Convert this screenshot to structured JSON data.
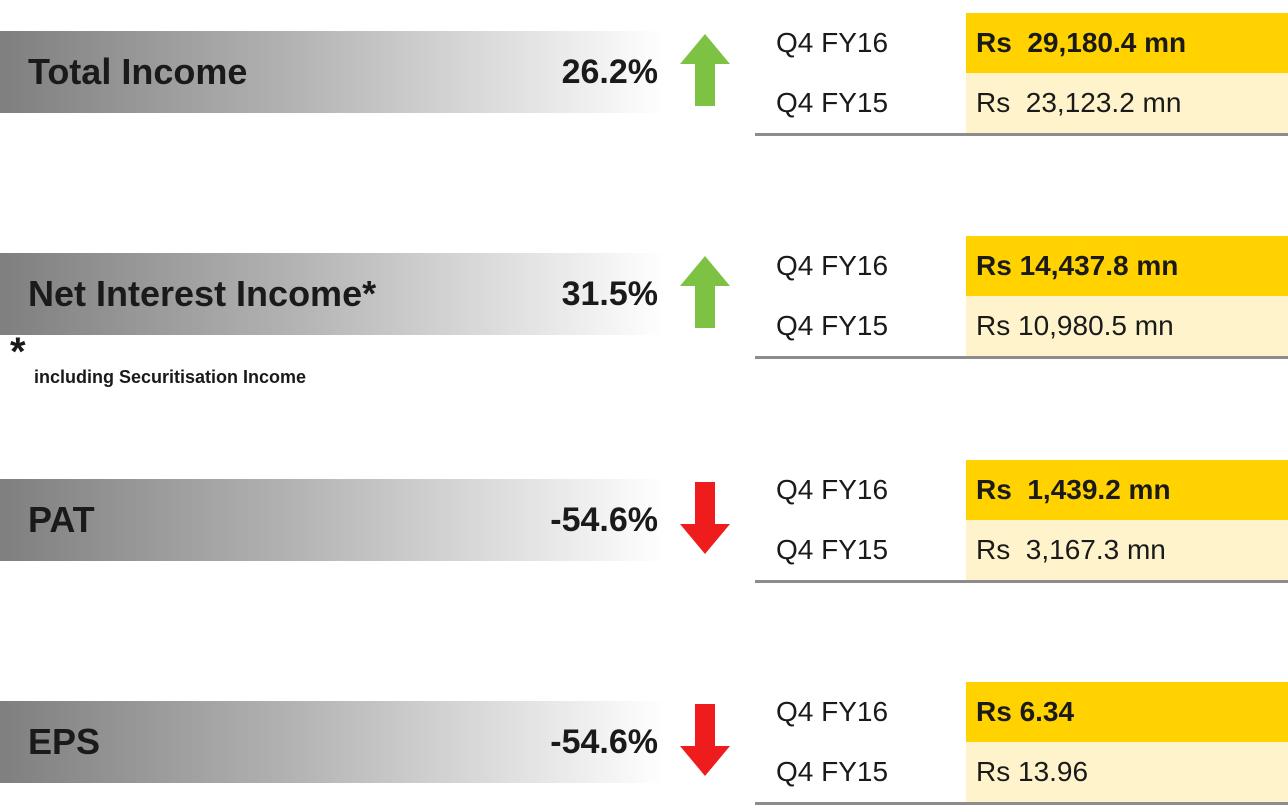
{
  "rows": [
    {
      "label": "Total Income",
      "change": "26.2%",
      "trend": "up",
      "periods": [
        {
          "period": "Q4 FY16",
          "value": "Rs  29,180.4 mn"
        },
        {
          "period": "Q4 FY15",
          "value": "Rs  23,123.2 mn"
        }
      ]
    },
    {
      "label": "Net Interest Income*",
      "change": "31.5%",
      "trend": "up",
      "periods": [
        {
          "period": "Q4 FY16",
          "value": "Rs 14,437.8 mn"
        },
        {
          "period": "Q4 FY15",
          "value": "Rs 10,980.5 mn"
        }
      ]
    },
    {
      "label": "PAT",
      "change": "-54.6%",
      "trend": "down",
      "periods": [
        {
          "period": "Q4 FY16",
          "value": "Rs  1,439.2 mn"
        },
        {
          "period": "Q4 FY15",
          "value": "Rs  3,167.3 mn"
        }
      ]
    },
    {
      "label": "EPS",
      "change": "-54.6%",
      "trend": "down",
      "periods": [
        {
          "period": "Q4 FY16",
          "value": "Rs 6.34"
        },
        {
          "period": "Q4 FY15",
          "value": "Rs 13.96"
        }
      ]
    }
  ],
  "footnote": {
    "mark": "*",
    "text": "including Securitisation Income"
  }
}
